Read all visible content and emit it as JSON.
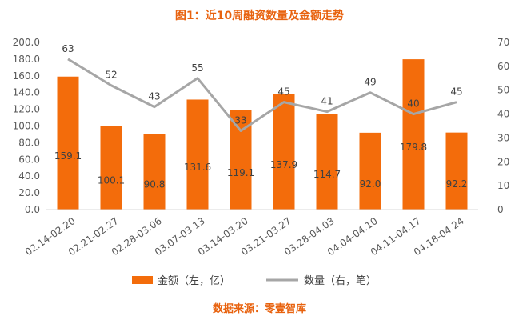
{
  "chart_data": {
    "type": "bar+line",
    "title": "图1：近10周融资数量及金额走势",
    "source": "数据来源：零壹智库",
    "categories": [
      "02.14-02.20",
      "02.21-02.27",
      "02.28-03.06",
      "03.07-03.13",
      "03.14-03.20",
      "03.21-03.27",
      "03.28-04.03",
      "04.04-04.10",
      "04.11-04.17",
      "04.18-04.24"
    ],
    "bar_series": {
      "name": "金额（左，亿）",
      "values": [
        159.1,
        100.1,
        90.8,
        131.6,
        119.1,
        137.9,
        114.7,
        92.0,
        179.8,
        92.2
      ],
      "labels": [
        "159.1",
        "100.1",
        "90.8",
        "131.6",
        "119.1",
        "137.9",
        "114.7",
        "92.0",
        "179.8",
        "92.2"
      ],
      "color": "#F36C0B"
    },
    "line_series": {
      "name": "数量（右，笔）",
      "values": [
        63,
        52,
        43,
        55,
        33,
        45,
        41,
        49,
        40,
        45
      ],
      "color": "#A6A6A6"
    },
    "left_axis": {
      "ylim": [
        0,
        200
      ],
      "step": 20,
      "tick_labels": [
        "0.0",
        "20.0",
        "40.0",
        "60.0",
        "80.0",
        "100.0",
        "120.0",
        "140.0",
        "160.0",
        "180.0",
        "200.0"
      ]
    },
    "right_axis": {
      "ylim": [
        0,
        70
      ],
      "step": 10,
      "tick_labels": [
        "0",
        "10",
        "20",
        "30",
        "40",
        "50",
        "60",
        "70"
      ]
    },
    "legend_position": "bottom",
    "grid": false,
    "title_color": "#E8620E"
  }
}
